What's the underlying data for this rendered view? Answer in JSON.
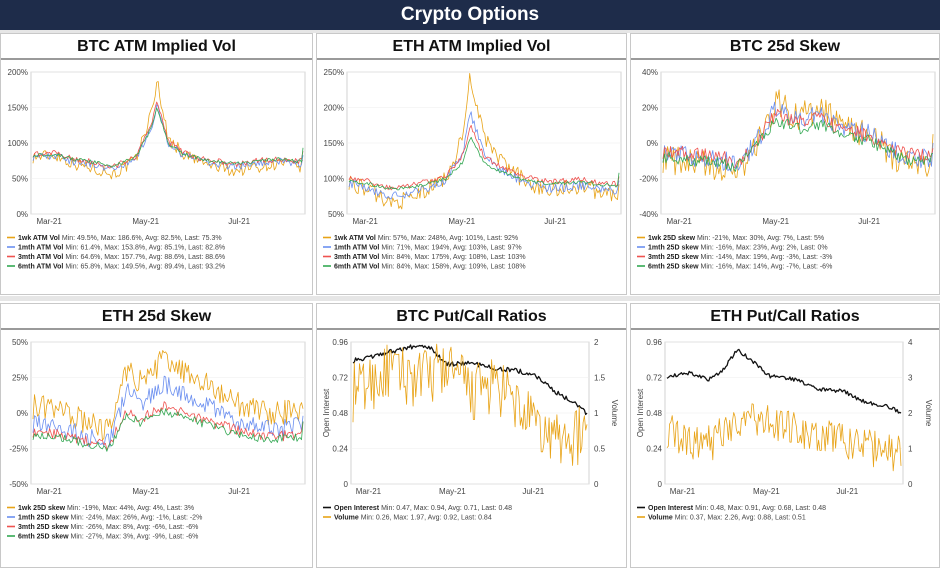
{
  "header": {
    "title": "Crypto Options"
  },
  "chart_data": [
    {
      "id": "btc-atm-vol",
      "type": "line",
      "title": "BTC ATM Implied Vol",
      "x": [
        "Mar-21",
        "May-21",
        "Jul-21"
      ],
      "y_ticks": [
        "200%",
        "150%",
        "100%",
        "50%",
        "0%"
      ],
      "ylim": [
        0,
        200
      ],
      "colors": [
        "#e8a317",
        "#6b8ff0",
        "#ef5350",
        "#34a853"
      ],
      "series": [
        {
          "name": "1wk ATM Vol",
          "min": "49.5%",
          "max": "186.6%",
          "avg": "82.5%",
          "last": "75.3%",
          "stats": "Min: 49.5%, Max: 186.6%, Avg: 82.5%, Last: 75.3%"
        },
        {
          "name": "1mth ATM Vol",
          "min": "61.4%",
          "max": "153.8%",
          "avg": "85.1%",
          "last": "82.8%",
          "stats": "Min: 61.4%, Max: 153.8%, Avg: 85.1%, Last: 82.8%"
        },
        {
          "name": "3mth ATM Vol",
          "min": "64.6%",
          "max": "157.7%",
          "avg": "88.6%",
          "last": "88.6%",
          "stats": "Min: 64.6%, Max: 157.7%, Avg: 88.6%, Last: 88.6%"
        },
        {
          "name": "6mth ATM Vol",
          "min": "65.8%",
          "max": "149.5%",
          "avg": "89.4%",
          "last": "93.2%",
          "stats": "Min: 65.8%, Max: 149.5%, Avg: 89.4%, Last: 93.2%"
        }
      ]
    },
    {
      "id": "eth-atm-vol",
      "type": "line",
      "title": "ETH ATM Implied Vol",
      "x": [
        "Mar-21",
        "May-21",
        "Jul-21"
      ],
      "y_ticks": [
        "250%",
        "200%",
        "150%",
        "100%",
        "50%"
      ],
      "ylim": [
        50,
        250
      ],
      "colors": [
        "#e8a317",
        "#6b8ff0",
        "#ef5350",
        "#34a853"
      ],
      "series": [
        {
          "name": "1wk ATM Vol",
          "min": "57%",
          "max": "248%",
          "avg": "101%",
          "last": "92%",
          "stats": "Min: 57%, Max: 248%, Avg: 101%, Last: 92%"
        },
        {
          "name": "1mth ATM Vol",
          "min": "71%",
          "max": "194%",
          "avg": "103%",
          "last": "97%",
          "stats": "Min: 71%, Max: 194%, Avg: 103%, Last: 97%"
        },
        {
          "name": "3mth ATM Vol",
          "min": "84%",
          "max": "175%",
          "avg": "108%",
          "last": "103%",
          "stats": "Min: 84%, Max: 175%, Avg: 108%, Last: 103%"
        },
        {
          "name": "6mth ATM Vol",
          "min": "84%",
          "max": "158%",
          "avg": "109%",
          "last": "108%",
          "stats": "Min: 84%, Max: 158%, Avg: 109%, Last: 108%"
        }
      ]
    },
    {
      "id": "btc-25d-skew",
      "type": "line",
      "title": "BTC 25d Skew",
      "x": [
        "Mar-21",
        "May-21",
        "Jul-21"
      ],
      "y_ticks": [
        "40%",
        "20%",
        "0%",
        "-20%",
        "-40%"
      ],
      "ylim": [
        -40,
        40
      ],
      "colors": [
        "#e8a317",
        "#6b8ff0",
        "#ef5350",
        "#34a853"
      ],
      "series": [
        {
          "name": "1wk 25D skew",
          "min": "-21%",
          "max": "30%",
          "avg": "7%",
          "last": "5%",
          "stats": "Min: -21%, Max: 30%, Avg: 7%, Last: 5%"
        },
        {
          "name": "1mth 25D skew",
          "min": "-16%",
          "max": "23%",
          "avg": "2%",
          "last": "0%",
          "stats": "Min: -16%, Max: 23%, Avg: 2%, Last: 0%"
        },
        {
          "name": "3mth 25D skew",
          "min": "-14%",
          "max": "19%",
          "avg": "-3%",
          "last": "-3%",
          "stats": "Min: -14%, Max: 19%, Avg: -3%, Last: -3%"
        },
        {
          "name": "6mth 25D skew",
          "min": "-16%",
          "max": "14%",
          "avg": "-7%",
          "last": "-6%",
          "stats": "Min: -16%, Max: 14%, Avg: -7%, Last: -6%"
        }
      ]
    },
    {
      "id": "eth-25d-skew",
      "type": "line",
      "title": "ETH 25d Skew",
      "x": [
        "Mar-21",
        "May-21",
        "Jul-21"
      ],
      "y_ticks": [
        "50%",
        "25%",
        "0%",
        "-25%",
        "-50%"
      ],
      "ylim": [
        -50,
        50
      ],
      "colors": [
        "#e8a317",
        "#6b8ff0",
        "#ef5350",
        "#34a853"
      ],
      "series": [
        {
          "name": "1wk 25D skew",
          "min": "-19%",
          "max": "44%",
          "avg": "4%",
          "last": "3%",
          "stats": "Min: -19%, Max: 44%, Avg: 4%, Last: 3%"
        },
        {
          "name": "1mth 25D skew",
          "min": "-24%",
          "max": "26%",
          "avg": "-1%",
          "last": "-2%",
          "stats": "Min: -24%, Max: 26%, Avg: -1%, Last: -2%"
        },
        {
          "name": "3mth 25D skew",
          "min": "-26%",
          "max": "8%",
          "avg": "-6%",
          "last": "-6%",
          "stats": "Min: -26%, Max: 8%, Avg: -6%, Last: -6%"
        },
        {
          "name": "6mth 25D skew",
          "min": "-27%",
          "max": "3%",
          "avg": "-9%",
          "last": "-6%",
          "stats": "Min: -27%, Max: 3%, Avg: -9%, Last: -6%"
        }
      ]
    },
    {
      "id": "btc-put-call",
      "type": "line",
      "title": "BTC Put/Call Ratios",
      "x": [
        "Mar-21",
        "May-21",
        "Jul-21"
      ],
      "y_ticks": [
        "0.96",
        "0.72",
        "0.48",
        "0.24",
        "0"
      ],
      "y2_ticks": [
        "2",
        "1.5",
        "1",
        "0.5",
        "0"
      ],
      "ylabel": "Open Interest",
      "y2label": "Volume",
      "ylim": [
        0,
        0.96
      ],
      "y2lim": [
        0,
        2
      ],
      "colors": [
        "#111111",
        "#e8a317"
      ],
      "series": [
        {
          "name": "Open Interest",
          "min": "0.47",
          "max": "0.94",
          "avg": "0.71",
          "last": "0.48",
          "stats": "Min: 0.47, Max: 0.94, Avg: 0.71, Last: 0.48"
        },
        {
          "name": "Volume",
          "min": "0.26",
          "max": "1.97",
          "avg": "0.92",
          "last": "0.84",
          "stats": "Min: 0.26, Max: 1.97, Avg: 0.92, Last: 0.84"
        }
      ]
    },
    {
      "id": "eth-put-call",
      "type": "line",
      "title": "ETH Put/Call Ratios",
      "x": [
        "Mar-21",
        "May-21",
        "Jul-21"
      ],
      "y_ticks": [
        "0.96",
        "0.72",
        "0.48",
        "0.24",
        "0"
      ],
      "y2_ticks": [
        "4",
        "3",
        "2",
        "1",
        "0"
      ],
      "ylabel": "Open Interest",
      "y2label": "Volume",
      "ylim": [
        0,
        0.96
      ],
      "y2lim": [
        0,
        4
      ],
      "colors": [
        "#111111",
        "#e8a317"
      ],
      "series": [
        {
          "name": "Open Interest",
          "min": "0.48",
          "max": "0.91",
          "avg": "0.68",
          "last": "0.48",
          "stats": "Min: 0.48, Max: 0.91, Avg: 0.68, Last: 0.48"
        },
        {
          "name": "Volume",
          "min": "0.37",
          "max": "2.26",
          "avg": "0.88",
          "last": "0.51",
          "stats": "Min: 0.37, Max: 2.26, Avg: 0.88, Last: 0.51"
        }
      ]
    }
  ]
}
